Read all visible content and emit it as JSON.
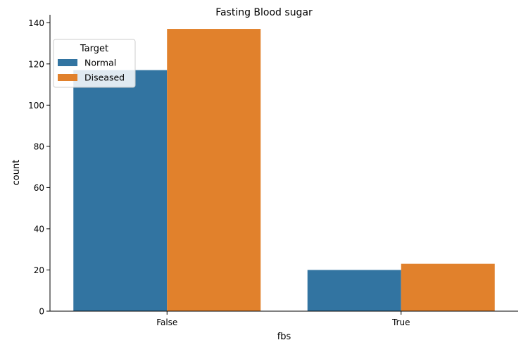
{
  "chart_data": {
    "type": "bar",
    "title": "Fasting Blood sugar",
    "xlabel": "fbs",
    "ylabel": "count",
    "categories": [
      "False",
      "True"
    ],
    "series": [
      {
        "name": "Normal",
        "values": [
          117,
          20
        ],
        "color": "#3274a1"
      },
      {
        "name": "Diseased",
        "values": [
          137,
          23
        ],
        "color": "#e1812c"
      }
    ],
    "ylim": [
      0,
      143.85
    ],
    "yticks": [
      0,
      20,
      40,
      60,
      80,
      100,
      120,
      140
    ],
    "grid": false,
    "legend": {
      "title": "Target",
      "placement": "top-left"
    }
  }
}
